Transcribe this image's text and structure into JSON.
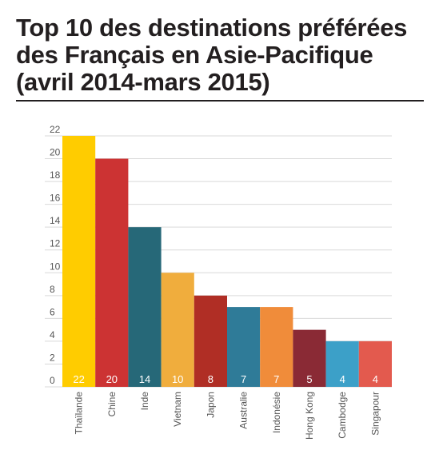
{
  "title_lines": [
    "Top 10 des destinations préférées",
    "des Français en Asie-Pacifique",
    "(avril 2014-mars 2015)"
  ],
  "chart_data": {
    "type": "bar",
    "title": "Top 10 des destinations préférées des Français en Asie-Pacifique (avril 2014-mars 2015)",
    "categories": [
      "Thaïlande",
      "Chine",
      "Inde",
      "Vietnam",
      "Japon",
      "Australie",
      "Indonésie",
      "Hong Kong",
      "Cambodge",
      "Singapour"
    ],
    "values": [
      22,
      20,
      14,
      10,
      8,
      7,
      7,
      5,
      4,
      4
    ],
    "colors": [
      "#ffcc00",
      "#cc3333",
      "#266878",
      "#f0ad3d",
      "#b02e25",
      "#2f7b98",
      "#f08c3a",
      "#8a2a35",
      "#3ca0c8",
      "#e35a4e"
    ],
    "yticks": [
      0,
      2,
      4,
      6,
      8,
      10,
      12,
      14,
      16,
      18,
      20,
      22
    ],
    "ylim": [
      0,
      22
    ],
    "grid": true,
    "xlabel": "",
    "ylabel": ""
  }
}
